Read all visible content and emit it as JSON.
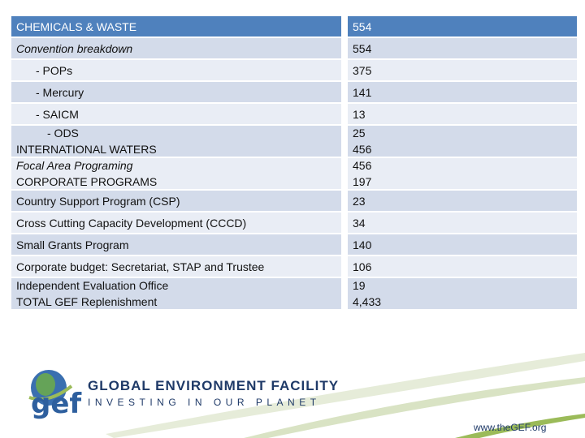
{
  "table": {
    "rows": [
      {
        "label": "CHEMICALS & WASTE",
        "value": "554"
      },
      {
        "label": "Convention breakdown",
        "value": "554"
      },
      {
        "label": "- POPs",
        "value": "375"
      },
      {
        "label": "- Mercury",
        "value": "141"
      },
      {
        "label": "- SAICM",
        "value": "13"
      },
      {
        "label": "- ODS",
        "label2": "INTERNATIONAL WATERS",
        "value": "25",
        "value2": "456"
      },
      {
        "label": "Focal Area Programing",
        "label2": "CORPORATE PROGRAMS",
        "value": "456",
        "value2": "197"
      },
      {
        "label": "Country Support Program (CSP)",
        "value": "23"
      },
      {
        "label": "Cross Cutting Capacity Development (CCCD)",
        "value": "34"
      },
      {
        "label": "Small Grants Program",
        "value": "140"
      },
      {
        "label": "Corporate budget: Secretariat, STAP and Trustee",
        "value": "106"
      },
      {
        "label": "Independent Evaluation Office",
        "label2": "TOTAL GEF Replenishment",
        "value": "19",
        "value2": "4,433"
      }
    ]
  },
  "footer": {
    "logo_short": "gef",
    "org_name": "GLOBAL ENVIRONMENT FACILITY",
    "tagline": "INVESTING IN OUR PLANET",
    "url": "www.theGEF.org"
  },
  "colors": {
    "header_blue": "#4f81bd",
    "row_dark": "#d3dbea",
    "row_light": "#e9edf5",
    "brand_navy": "#1f3a68",
    "brand_green": "#6aa84f"
  }
}
